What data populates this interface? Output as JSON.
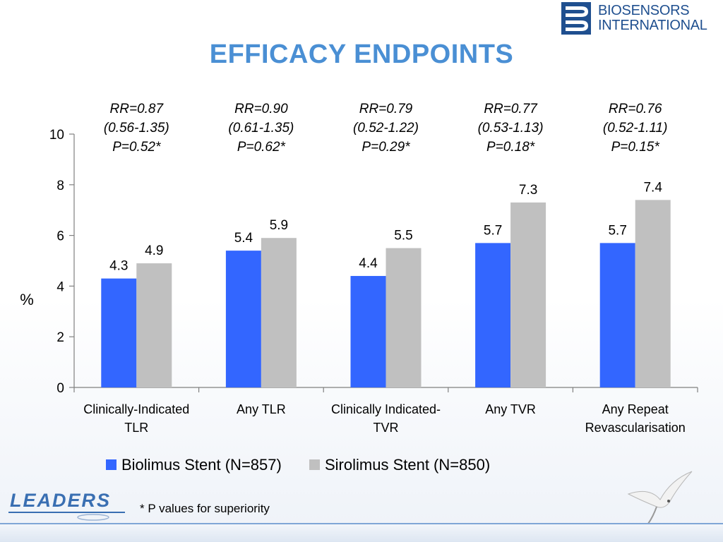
{
  "header": {
    "company_name_line1": "BIOSENSORS",
    "company_name_line2": "INTERNATIONAL",
    "logo_icon": "biosensors-b-icon"
  },
  "slide": {
    "title": "EFFICACY ENDPOINTS",
    "footnote": "* P values for superiority",
    "trial_logo_text": "LEADERS"
  },
  "colors": {
    "title": "#4a8fd4",
    "biolimus": "#3366ff",
    "sirolimus": "#c0c0c0",
    "axis": "#808080"
  },
  "chart_data": {
    "type": "bar",
    "ylabel": "%",
    "ylim": [
      0,
      10
    ],
    "yticks": [
      0,
      2,
      4,
      6,
      8,
      10
    ],
    "categories": [
      [
        "Clinically-Indicated",
        "TLR"
      ],
      [
        "Any TLR"
      ],
      [
        "Clinically Indicated-",
        "TVR"
      ],
      [
        "Any TVR"
      ],
      [
        "Any Repeat",
        "Revascularisation"
      ]
    ],
    "series": [
      {
        "name": "Biolimus Stent (N=857)",
        "values": [
          4.3,
          5.4,
          4.4,
          5.7,
          5.7
        ]
      },
      {
        "name": "Sirolimus Stent (N=850)",
        "values": [
          4.9,
          5.9,
          5.5,
          7.3,
          7.4
        ]
      }
    ],
    "annotations": [
      [
        "RR=0.87",
        "(0.56-1.35)",
        "P=0.52*"
      ],
      [
        "RR=0.90",
        "(0.61-1.35)",
        "P=0.62*"
      ],
      [
        "RR=0.79",
        "(0.52-1.22)",
        "P=0.29*"
      ],
      [
        "RR=0.77",
        "(0.53-1.13)",
        "P=0.18*"
      ],
      [
        "RR=0.76",
        "(0.52-1.11)",
        "P=0.15*"
      ]
    ],
    "legend_position": "bottom",
    "grid": false
  }
}
